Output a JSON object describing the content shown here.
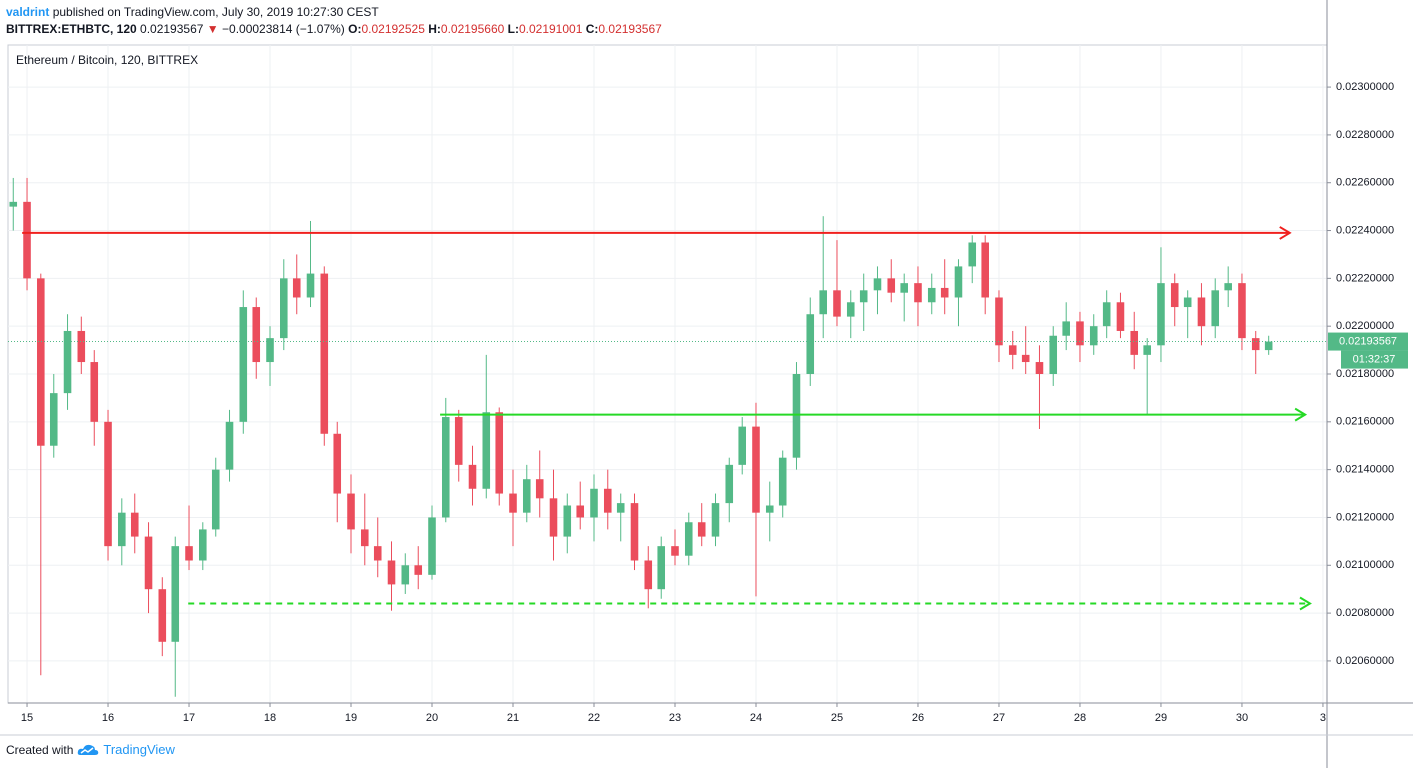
{
  "header": {
    "author": "valdrint",
    "published": "published on TradingView.com, July 30, 2019 10:27:30 CEST",
    "symbol": "BITTREX:ETHBTC, 120",
    "last": "0.02193567",
    "arrow": "▼",
    "change": "−0.00023814 (−1.07%)",
    "quote": [
      {
        "label": "O:",
        "value": "0.02192525"
      },
      {
        "label": "H:",
        "value": "0.02195660"
      },
      {
        "label": "L:",
        "value": "0.02191001"
      },
      {
        "label": "C:",
        "value": "0.02193567"
      }
    ]
  },
  "footer": {
    "created": "Created with",
    "brand": "TradingView"
  },
  "chart_data": {
    "type": "candlestick",
    "title": "Ethereum / Bitcoin, 120, BITTREX",
    "countdown": "01:32:37",
    "up_color": "#53b987",
    "down_color": "#eb4d5c",
    "grid": true,
    "xlim": [
      14.765,
      31.05
    ],
    "xticks": [
      15,
      16,
      17,
      18,
      19,
      20,
      21,
      22,
      23,
      24,
      25,
      26,
      27,
      28,
      29,
      30,
      {
        "value": 31,
        "label": "3"
      }
    ],
    "ylim": [
      0.020424,
      0.023176
    ],
    "yticks": [
      {
        "value": 0.0206,
        "label": "0.02060000"
      },
      {
        "value": 0.0208,
        "label": "0.02080000"
      },
      {
        "value": 0.021,
        "label": "0.02100000"
      },
      {
        "value": 0.0212,
        "label": "0.02120000"
      },
      {
        "value": 0.0214,
        "label": "0.02140000"
      },
      {
        "value": 0.0216,
        "label": "0.02160000"
      },
      {
        "value": 0.0218,
        "label": "0.02180000"
      },
      {
        "value": 0.022,
        "label": "0.02200000"
      },
      {
        "value": 0.0222,
        "label": "0.02220000"
      },
      {
        "value": 0.0224,
        "label": "0.02240000"
      },
      {
        "value": 0.0226,
        "label": "0.02260000"
      },
      {
        "value": 0.0228,
        "label": "0.02280000"
      },
      {
        "value": 0.023,
        "label": "0.02300000"
      }
    ],
    "x": [
      14.83,
      15,
      15.17,
      15.33,
      15.5,
      15.67,
      15.83,
      16,
      16.17,
      16.33,
      16.5,
      16.67,
      16.83,
      17,
      17.17,
      17.33,
      17.5,
      17.67,
      17.83,
      18,
      18.17,
      18.33,
      18.5,
      18.67,
      18.83,
      19,
      19.17,
      19.33,
      19.5,
      19.67,
      19.83,
      20,
      20.17,
      20.33,
      20.5,
      20.67,
      20.83,
      21,
      21.17,
      21.33,
      21.5,
      21.67,
      21.83,
      22,
      22.17,
      22.33,
      22.5,
      22.67,
      22.83,
      23,
      23.17,
      23.33,
      23.5,
      23.67,
      23.83,
      24,
      24.17,
      24.33,
      24.5,
      24.67,
      24.83,
      25,
      25.17,
      25.33,
      25.5,
      25.67,
      25.83,
      26,
      26.17,
      26.33,
      26.5,
      26.67,
      26.83,
      27,
      27.17,
      27.33,
      27.5,
      27.67,
      27.83,
      28,
      28.17,
      28.33,
      28.5,
      28.67,
      28.83,
      29,
      29.17,
      29.33,
      29.5,
      29.67,
      29.83,
      30,
      30.17,
      30.33
    ],
    "open": [
      0.0225,
      0.02252,
      0.0222,
      0.0215,
      0.02172,
      0.02198,
      0.02185,
      0.0216,
      0.02108,
      0.02122,
      0.02112,
      0.0209,
      0.02068,
      0.02108,
      0.02102,
      0.02115,
      0.0214,
      0.0216,
      0.02208,
      0.02185,
      0.02195,
      0.0222,
      0.02212,
      0.02222,
      0.02155,
      0.0213,
      0.02115,
      0.02108,
      0.02102,
      0.02092,
      0.021,
      0.02096,
      0.0212,
      0.02162,
      0.02142,
      0.02132,
      0.02164,
      0.0213,
      0.02122,
      0.02136,
      0.02128,
      0.02112,
      0.02125,
      0.0212,
      0.02132,
      0.02122,
      0.02126,
      0.02102,
      0.0209,
      0.02108,
      0.02104,
      0.02118,
      0.02112,
      0.02126,
      0.02142,
      0.02158,
      0.02122,
      0.02125,
      0.02145,
      0.0218,
      0.02205,
      0.02215,
      0.02204,
      0.0221,
      0.02215,
      0.0222,
      0.02214,
      0.02218,
      0.0221,
      0.02216,
      0.02212,
      0.02225,
      0.02235,
      0.02212,
      0.02192,
      0.02188,
      0.02185,
      0.0218,
      0.02196,
      0.02202,
      0.02192,
      0.022,
      0.0221,
      0.02198,
      0.02188,
      0.02192,
      0.02218,
      0.02208,
      0.02212,
      0.022,
      0.02215,
      0.02218,
      0.02195,
      0.0219
    ],
    "high": [
      0.02262,
      0.02262,
      0.02222,
      0.0218,
      0.02205,
      0.02204,
      0.0219,
      0.02165,
      0.02128,
      0.0213,
      0.02118,
      0.02095,
      0.02112,
      0.02125,
      0.02118,
      0.02145,
      0.02165,
      0.02215,
      0.02212,
      0.022,
      0.02228,
      0.0223,
      0.02244,
      0.02225,
      0.0216,
      0.02138,
      0.0213,
      0.0212,
      0.0211,
      0.02105,
      0.02108,
      0.02125,
      0.0217,
      0.02165,
      0.0215,
      0.02188,
      0.02166,
      0.0214,
      0.02142,
      0.02148,
      0.0214,
      0.0213,
      0.02135,
      0.02138,
      0.0214,
      0.0213,
      0.0213,
      0.02108,
      0.02112,
      0.02115,
      0.02122,
      0.02126,
      0.0213,
      0.02145,
      0.02162,
      0.02168,
      0.02135,
      0.02148,
      0.02185,
      0.02212,
      0.02246,
      0.02236,
      0.02215,
      0.02222,
      0.02225,
      0.02228,
      0.02222,
      0.02225,
      0.02222,
      0.02228,
      0.02228,
      0.02238,
      0.02238,
      0.02215,
      0.02198,
      0.022,
      0.02192,
      0.022,
      0.0221,
      0.02206,
      0.02205,
      0.02215,
      0.02214,
      0.02206,
      0.02195,
      0.02233,
      0.02222,
      0.02215,
      0.02218,
      0.0222,
      0.02225,
      0.02222,
      0.02198,
      0.02196
    ],
    "low": [
      0.0224,
      0.02215,
      0.02054,
      0.02145,
      0.02165,
      0.0218,
      0.0215,
      0.02102,
      0.021,
      0.02105,
      0.0208,
      0.02062,
      0.02045,
      0.02098,
      0.02098,
      0.02112,
      0.02135,
      0.02155,
      0.02178,
      0.02175,
      0.0219,
      0.02205,
      0.02208,
      0.0215,
      0.02118,
      0.02105,
      0.021,
      0.02095,
      0.02081,
      0.02088,
      0.0209,
      0.02094,
      0.02118,
      0.02135,
      0.02125,
      0.02128,
      0.02125,
      0.02108,
      0.02118,
      0.0212,
      0.02102,
      0.02105,
      0.02115,
      0.0211,
      0.02115,
      0.0211,
      0.02098,
      0.02082,
      0.02086,
      0.021,
      0.021,
      0.02108,
      0.02108,
      0.02118,
      0.02138,
      0.02087,
      0.0211,
      0.0212,
      0.0214,
      0.02175,
      0.02195,
      0.022,
      0.02195,
      0.02198,
      0.02205,
      0.0221,
      0.02202,
      0.022,
      0.02205,
      0.02205,
      0.022,
      0.02218,
      0.02205,
      0.02185,
      0.02182,
      0.0218,
      0.02157,
      0.02175,
      0.0219,
      0.02185,
      0.02188,
      0.02195,
      0.02195,
      0.02182,
      0.02163,
      0.02185,
      0.022,
      0.02195,
      0.02192,
      0.02195,
      0.02208,
      0.0219,
      0.0218,
      0.02188
    ],
    "close": [
      0.02252,
      0.0222,
      0.0215,
      0.02172,
      0.02198,
      0.02185,
      0.0216,
      0.02108,
      0.02122,
      0.02112,
      0.0209,
      0.02068,
      0.02108,
      0.02102,
      0.02115,
      0.0214,
      0.0216,
      0.02208,
      0.02185,
      0.02195,
      0.0222,
      0.02212,
      0.02222,
      0.02155,
      0.0213,
      0.02115,
      0.02108,
      0.02102,
      0.02092,
      0.021,
      0.02096,
      0.0212,
      0.02162,
      0.02142,
      0.02132,
      0.02164,
      0.0213,
      0.02122,
      0.02136,
      0.02128,
      0.02112,
      0.02125,
      0.0212,
      0.02132,
      0.02122,
      0.02126,
      0.02102,
      0.0209,
      0.02108,
      0.02104,
      0.02118,
      0.02112,
      0.02126,
      0.02142,
      0.02158,
      0.02122,
      0.02125,
      0.02145,
      0.0218,
      0.02205,
      0.02215,
      0.02204,
      0.0221,
      0.02215,
      0.0222,
      0.02214,
      0.02218,
      0.0221,
      0.02216,
      0.02212,
      0.02225,
      0.02235,
      0.02212,
      0.02192,
      0.02188,
      0.02185,
      0.0218,
      0.02196,
      0.02202,
      0.02192,
      0.022,
      0.0221,
      0.02198,
      0.02188,
      0.02192,
      0.02218,
      0.02208,
      0.02212,
      0.022,
      0.02215,
      0.02218,
      0.02195,
      0.0219,
      0.02193567
    ],
    "lines": [
      {
        "price": 0.02239,
        "start": 14.94,
        "end": 30.59,
        "color": "#f0201e",
        "dashed": false
      },
      {
        "price": 0.02163,
        "start": 20.1,
        "end": 30.78,
        "color": "#26d926",
        "dashed": false
      },
      {
        "price": 0.02084,
        "start": 16.99,
        "end": 30.84,
        "color": "#26d926",
        "dashed": true
      }
    ]
  }
}
